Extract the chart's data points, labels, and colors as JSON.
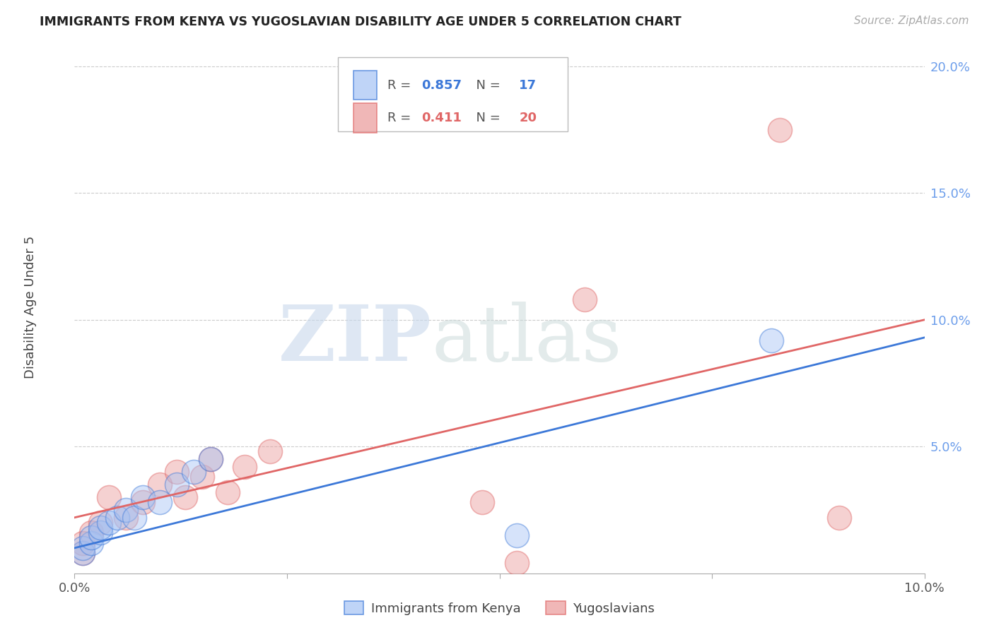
{
  "title": "IMMIGRANTS FROM KENYA VS YUGOSLAVIAN DISABILITY AGE UNDER 5 CORRELATION CHART",
  "source": "Source: ZipAtlas.com",
  "ylabel": "Disability Age Under 5",
  "xlim": [
    0.0,
    0.1
  ],
  "ylim": [
    0.0,
    0.21
  ],
  "kenya_R": 0.857,
  "kenya_N": 17,
  "yugo_R": 0.411,
  "yugo_N": 20,
  "kenya_color": "#a4c2f4",
  "yugo_color": "#ea9999",
  "kenya_line_color": "#3c78d8",
  "yugo_line_color": "#e06666",
  "right_axis_color": "#6d9eeb",
  "kenya_line": [
    0.01,
    0.093
  ],
  "yugo_line": [
    0.022,
    0.1
  ],
  "kenya_x": [
    0.001,
    0.001,
    0.002,
    0.002,
    0.003,
    0.003,
    0.004,
    0.005,
    0.006,
    0.007,
    0.008,
    0.01,
    0.012,
    0.014,
    0.016,
    0.052,
    0.082
  ],
  "kenya_y": [
    0.008,
    0.01,
    0.012,
    0.014,
    0.016,
    0.018,
    0.02,
    0.022,
    0.025,
    0.022,
    0.03,
    0.028,
    0.035,
    0.04,
    0.045,
    0.015,
    0.092
  ],
  "yugo_x": [
    0.001,
    0.001,
    0.002,
    0.003,
    0.004,
    0.006,
    0.008,
    0.01,
    0.012,
    0.013,
    0.015,
    0.016,
    0.018,
    0.02,
    0.023,
    0.048,
    0.052,
    0.06,
    0.083,
    0.09
  ],
  "yugo_y": [
    0.008,
    0.012,
    0.016,
    0.02,
    0.03,
    0.022,
    0.028,
    0.035,
    0.04,
    0.03,
    0.038,
    0.045,
    0.032,
    0.042,
    0.048,
    0.028,
    0.004,
    0.108,
    0.175,
    0.022
  ]
}
